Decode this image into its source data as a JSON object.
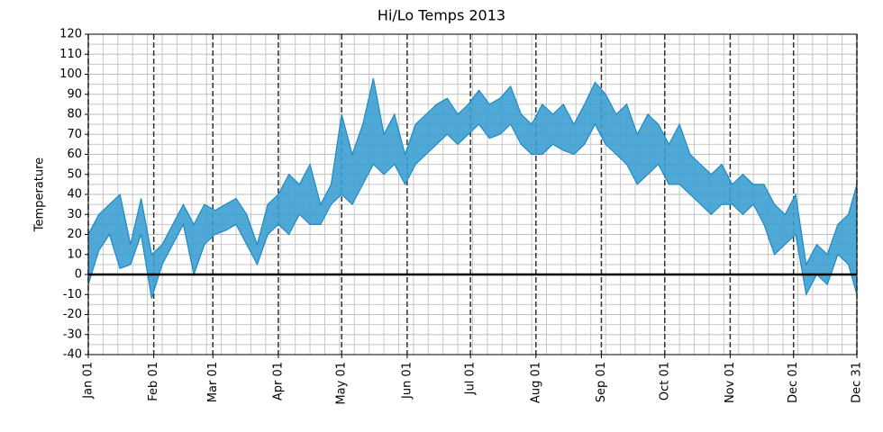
{
  "chart_data": {
    "type": "fill_between",
    "title": "Hi/Lo Temps 2013",
    "y_label": "Temperature",
    "x": [
      "Jan 01",
      "Jan 06",
      "Jan 11",
      "Jan 16",
      "Jan 21",
      "Jan 26",
      "Jan 31",
      "Feb 05",
      "Feb 10",
      "Feb 15",
      "Feb 20",
      "Feb 25",
      "Mar 02",
      "Mar 07",
      "Mar 12",
      "Mar 17",
      "Mar 22",
      "Mar 27",
      "Apr 01",
      "Apr 06",
      "Apr 11",
      "Apr 16",
      "Apr 21",
      "Apr 26",
      "May 01",
      "May 06",
      "May 11",
      "May 16",
      "May 21",
      "May 26",
      "May 31",
      "Jun 05",
      "Jun 10",
      "Jun 15",
      "Jun 20",
      "Jun 25",
      "Jun 30",
      "Jul 05",
      "Jul 10",
      "Jul 15",
      "Jul 20",
      "Jul 25",
      "Jul 30",
      "Aug 04",
      "Aug 09",
      "Aug 14",
      "Aug 19",
      "Aug 24",
      "Aug 29",
      "Sep 03",
      "Sep 08",
      "Sep 13",
      "Sep 18",
      "Sep 23",
      "Sep 28",
      "Oct 03",
      "Oct 08",
      "Oct 13",
      "Oct 18",
      "Oct 23",
      "Oct 28",
      "Nov 02",
      "Nov 07",
      "Nov 12",
      "Nov 17",
      "Nov 22",
      "Nov 27",
      "Dec 02",
      "Dec 07",
      "Dec 12",
      "Dec 17",
      "Dec 22",
      "Dec 27",
      "Dec 31"
    ],
    "high": [
      20,
      30,
      35,
      40,
      15,
      38,
      10,
      15,
      25,
      35,
      25,
      35,
      32,
      35,
      38,
      30,
      15,
      35,
      40,
      50,
      45,
      55,
      35,
      45,
      80,
      60,
      75,
      98,
      70,
      80,
      60,
      75,
      80,
      85,
      88,
      80,
      85,
      92,
      85,
      88,
      94,
      80,
      75,
      85,
      80,
      85,
      75,
      85,
      96,
      90,
      80,
      85,
      70,
      80,
      75,
      65,
      75,
      60,
      55,
      50,
      55,
      45,
      50,
      45,
      45,
      35,
      30,
      40,
      5,
      15,
      10,
      25,
      30,
      45
    ],
    "low": [
      -5,
      12,
      20,
      3,
      5,
      20,
      -12,
      5,
      15,
      25,
      0,
      15,
      20,
      22,
      25,
      15,
      5,
      20,
      25,
      20,
      30,
      25,
      25,
      35,
      40,
      35,
      45,
      55,
      50,
      55,
      45,
      55,
      60,
      65,
      70,
      65,
      70,
      75,
      68,
      70,
      75,
      65,
      60,
      60,
      65,
      62,
      60,
      65,
      75,
      65,
      60,
      55,
      45,
      50,
      55,
      45,
      45,
      40,
      35,
      30,
      35,
      35,
      30,
      35,
      25,
      10,
      15,
      20,
      -10,
      0,
      -5,
      10,
      5,
      -10
    ],
    "color": "#3c9fd2",
    "edge_color": "#1f8bc4",
    "xlim": [
      "Jan 01",
      "Dec 31"
    ],
    "xticks": [
      "Jan 01",
      "Feb 01",
      "Mar 01",
      "Apr 01",
      "May 01",
      "Jun 01",
      "Jul 01",
      "Aug 01",
      "Sep 01",
      "Oct 01",
      "Nov 01",
      "Dec 01",
      "Dec 31"
    ],
    "ylim": [
      -40,
      120
    ],
    "yticks": [
      -40,
      -30,
      -20,
      -10,
      0,
      10,
      20,
      30,
      40,
      50,
      60,
      70,
      80,
      90,
      100,
      110,
      120
    ],
    "hline": 0,
    "grid": true
  }
}
